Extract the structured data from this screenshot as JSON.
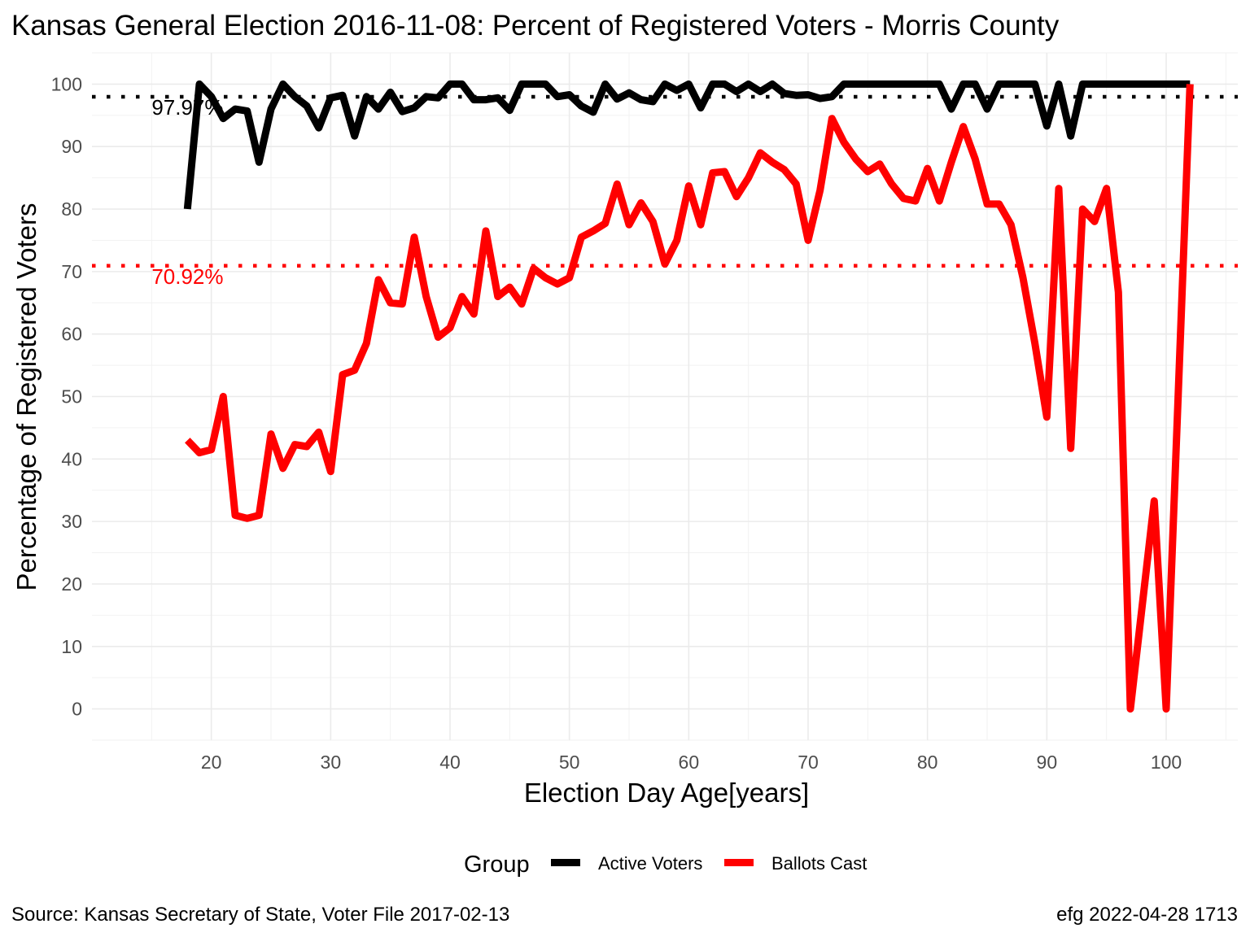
{
  "chart_data": {
    "type": "line",
    "title": "Kansas General Election 2016-11-08:  Percent of Registered Voters - Morris County",
    "xlabel": "Election Day Age[years]",
    "ylabel": "Percentage of Registered Voters",
    "xlim": [
      10,
      106
    ],
    "ylim": [
      -5,
      105
    ],
    "x_ticks": [
      20,
      30,
      40,
      50,
      60,
      70,
      80,
      90,
      100
    ],
    "y_ticks": [
      0,
      10,
      20,
      30,
      40,
      50,
      60,
      70,
      80,
      90,
      100
    ],
    "grid": true,
    "legend": {
      "title": "Group",
      "position": "bottom",
      "entries": [
        {
          "label": "Active Voters",
          "color": "#000000"
        },
        {
          "label": "Ballots Cast",
          "color": "#ff0000"
        }
      ]
    },
    "reference_lines": [
      {
        "series": "Active Voters",
        "value": 97.97,
        "label": "97.97%",
        "color": "#000000"
      },
      {
        "series": "Ballots Cast",
        "value": 70.92,
        "label": "70.92%",
        "color": "#ff0000"
      }
    ],
    "series": [
      {
        "name": "Active Voters",
        "color": "#000000",
        "x": [
          18,
          19,
          20,
          21,
          22,
          23,
          24,
          25,
          26,
          27,
          28,
          29,
          30,
          31,
          32,
          33,
          34,
          35,
          36,
          37,
          38,
          39,
          40,
          41,
          42,
          43,
          44,
          45,
          46,
          47,
          48,
          49,
          50,
          51,
          52,
          53,
          54,
          55,
          56,
          57,
          58,
          59,
          60,
          61,
          62,
          63,
          64,
          65,
          66,
          67,
          68,
          69,
          70,
          71,
          72,
          73,
          74,
          75,
          76,
          77,
          78,
          79,
          80,
          81,
          82,
          83,
          84,
          85,
          86,
          87,
          88,
          89,
          90,
          91,
          92,
          93,
          94,
          95,
          96,
          97,
          98,
          99,
          100,
          101,
          102
        ],
        "values": [
          80,
          100,
          98,
          94.5,
          96,
          95.7,
          87.5,
          96,
          100,
          98,
          96.5,
          93,
          97.8,
          98.2,
          91.7,
          98,
          96,
          98.7,
          95.6,
          96.2,
          98,
          97.8,
          100,
          100,
          97.5,
          97.5,
          97.8,
          95.8,
          100,
          100,
          100,
          98,
          98.3,
          96.5,
          95.5,
          100,
          97.6,
          98.6,
          97.5,
          97.2,
          100,
          99,
          100,
          96.2,
          100,
          100,
          98.8,
          100,
          98.8,
          100,
          98.5,
          98.2,
          98.3,
          97.7,
          98,
          100,
          100,
          100,
          100,
          100,
          100,
          100,
          100,
          100,
          96,
          100,
          100,
          96,
          100,
          100,
          100,
          100,
          93.3,
          100,
          91.7,
          100,
          100,
          100,
          100,
          100,
          100,
          100,
          100,
          100,
          100
        ]
      },
      {
        "name": "Ballots Cast",
        "color": "#ff0000",
        "x": [
          18,
          19,
          20,
          21,
          22,
          23,
          24,
          25,
          26,
          27,
          28,
          29,
          30,
          31,
          32,
          33,
          34,
          35,
          36,
          37,
          38,
          39,
          40,
          41,
          42,
          43,
          44,
          45,
          46,
          47,
          48,
          49,
          50,
          51,
          52,
          53,
          54,
          55,
          56,
          57,
          58,
          59,
          60,
          61,
          62,
          63,
          64,
          65,
          66,
          67,
          68,
          69,
          70,
          71,
          72,
          73,
          74,
          75,
          76,
          77,
          78,
          79,
          80,
          81,
          82,
          83,
          84,
          85,
          86,
          87,
          88,
          89,
          90,
          91,
          92,
          93,
          94,
          95,
          96,
          97,
          98,
          99,
          100,
          101,
          102
        ],
        "values": [
          43,
          41,
          41.5,
          50,
          31,
          30.5,
          31,
          44,
          38.5,
          42.3,
          42,
          44.3,
          38,
          53.5,
          54.2,
          58.5,
          68.7,
          65,
          64.8,
          75.5,
          66,
          59.5,
          61,
          66,
          63.2,
          76.5,
          66,
          67.5,
          64.8,
          70.5,
          69,
          68,
          69,
          75.5,
          76.5,
          77.7,
          84,
          77.5,
          81,
          78,
          71.2,
          75,
          83.7,
          77.5,
          85.8,
          86,
          82,
          85,
          89,
          87.5,
          86.3,
          84,
          75,
          83,
          94.5,
          90.7,
          88,
          86,
          87.2,
          84,
          81.7,
          81.3,
          86.5,
          81.3,
          87.5,
          93.2,
          88,
          80.8,
          80.8,
          77.5,
          69,
          58.5,
          46.7,
          83.3,
          41.7,
          80,
          78,
          83.3,
          66.7,
          0,
          16.7,
          33.3,
          0,
          50,
          100
        ]
      }
    ]
  },
  "caption": {
    "source": "Source:  Kansas Secretary of State, Voter File  2017-02-13",
    "credit": "efg 2022-04-28 1713"
  }
}
